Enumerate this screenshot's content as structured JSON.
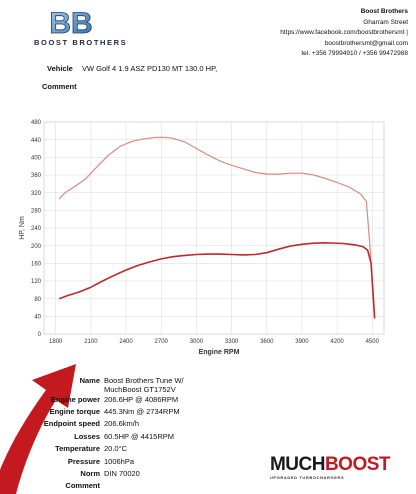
{
  "header": {
    "logo_mark": "BB",
    "logo_text": "BOOST BROTHERS",
    "company_name": "Boost Brothers",
    "address": "Gharram Street",
    "facebook": "https://www.facebook.com/boostbrothersmt |",
    "email": "boostbrothersmt@gmail.com",
    "phone": "tel. +356 79994910 / +356 99472988"
  },
  "vehicle": {
    "label": "Vehicle",
    "value": "VW Golf 4 1.9 ASZ PD130 MT 130.0 HP,",
    "comment_label": "Comment"
  },
  "chart_data": {
    "type": "line",
    "xlabel": "Engine RPM",
    "ylabel": "HP, Nm",
    "xlim": [
      1700,
      4600
    ],
    "ylim": [
      0,
      480
    ],
    "xticks": [
      1800,
      2100,
      2400,
      2700,
      3000,
      3300,
      3600,
      3900,
      4200,
      4500
    ],
    "yticks": [
      0,
      40,
      80,
      120,
      160,
      200,
      240,
      280,
      320,
      360,
      400,
      440,
      480
    ],
    "grid": true,
    "series": [
      {
        "color": "#d98a82",
        "x": [
          1830,
          1880,
          1950,
          2050,
          2150,
          2250,
          2350,
          2450,
          2550,
          2650,
          2734,
          2800,
          2900,
          3000,
          3100,
          3200,
          3300,
          3400,
          3500,
          3600,
          3700,
          3800,
          3900,
          4000,
          4100,
          4200,
          4300,
          4400,
          4450,
          4480,
          4500,
          4520
        ],
        "y": [
          306,
          320,
          332,
          350,
          378,
          405,
          425,
          436,
          442,
          445,
          445.3,
          443,
          435,
          420,
          405,
          392,
          382,
          374,
          366,
          362,
          362,
          364,
          364,
          360,
          352,
          343,
          333,
          317,
          300,
          200,
          110,
          35
        ]
      },
      {
        "color": "#c0282a",
        "x": [
          1830,
          1900,
          2000,
          2100,
          2200,
          2300,
          2400,
          2500,
          2600,
          2700,
          2800,
          2900,
          3000,
          3100,
          3200,
          3300,
          3400,
          3500,
          3600,
          3700,
          3800,
          3900,
          4000,
          4086,
          4150,
          4250,
          4350,
          4420,
          4460,
          4490,
          4510,
          4520
        ],
        "y": [
          80,
          87,
          95,
          106,
          120,
          133,
          145,
          155,
          163,
          170,
          175,
          178,
          180,
          181,
          181,
          180,
          179,
          180,
          184,
          192,
          199,
          203,
          205.5,
          206.6,
          206,
          205,
          202,
          198,
          190,
          160,
          80,
          35
        ]
      }
    ]
  },
  "specs": {
    "name_label": "Name",
    "name_value_1": "Boost Brothers Tune W/",
    "name_value_2": "MuchBoost GT1752V",
    "power_label": "Engine power",
    "power_value": "206.6HP @ 4086RPM",
    "torque_label": "Engine torque",
    "torque_value": "445.3Nm @ 2734RPM",
    "endpoint_label": "Endpoint speed",
    "endpoint_value": "206.6km/h",
    "losses_label": "Losses",
    "losses_value": "60.5HP @ 4415RPM",
    "temperature_label": "Temperature",
    "temperature_value": "20.0°C",
    "pressure_label": "Pressure",
    "pressure_value": "1006hPa",
    "norm_label": "Norm",
    "norm_value": "DIN 70020",
    "comment_label": "Comment"
  },
  "brand": {
    "title_main": "MUCH",
    "title_accent": "BOOST",
    "subtitle": "UPGRADED TURBOCHARGERS"
  },
  "colors": {
    "torque_line": "#d98a82",
    "power_line": "#c0282a",
    "brand_red": "#c41a1f",
    "logo_blue": "#1b2a44"
  }
}
